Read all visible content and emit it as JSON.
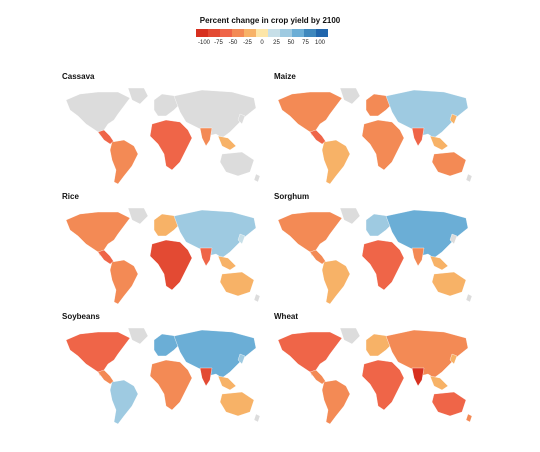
{
  "legend": {
    "title": "Percent change in crop yield by 2100",
    "ticks": [
      "-100",
      "-75",
      "-50",
      "-25",
      "0",
      "25",
      "50",
      "75",
      "100"
    ],
    "colors": [
      "#d7301f",
      "#e34a33",
      "#ef6548",
      "#f38a55",
      "#f7b267",
      "#fde6a8",
      "#c7dfe8",
      "#9ecae1",
      "#6baed6",
      "#3f88bd",
      "#2166ac"
    ]
  },
  "colors": {
    "land_no_data": "#dcdcdc",
    "ocean": "#ffffff"
  },
  "maps": [
    {
      "id": "cassava",
      "title": "Cassava"
    },
    {
      "id": "maize",
      "title": "Maize"
    },
    {
      "id": "rice",
      "title": "Rice"
    },
    {
      "id": "sorghum",
      "title": "Sorghum"
    },
    {
      "id": "soybeans",
      "title": "Soybeans"
    },
    {
      "id": "wheat",
      "title": "Wheat"
    }
  ]
}
